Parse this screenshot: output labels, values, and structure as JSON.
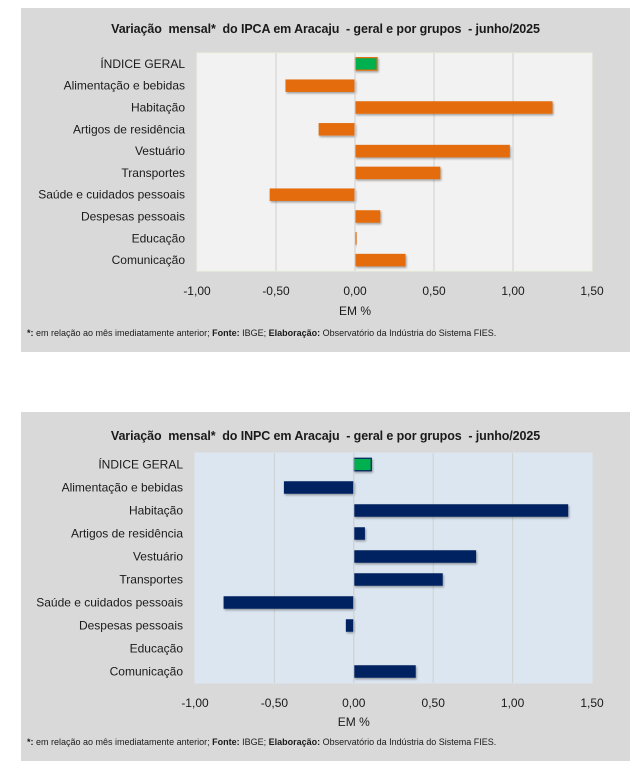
{
  "chart_data": [
    {
      "id": "ipca",
      "type": "bar",
      "orientation": "horizontal",
      "title": "Variação  mensal*  do IPCA em Aracaju  - geral e por grupos  - junho/2025",
      "xlabel": "EM %",
      "ylabel": "",
      "xlim": [
        -1.0,
        1.5
      ],
      "xticks": [
        -1.0,
        -0.5,
        0.0,
        0.5,
        1.0,
        1.5
      ],
      "xtick_labels": [
        "-1,00",
        "-0,50",
        "0,00",
        "0,50",
        "1,00",
        "1,50"
      ],
      "grid": true,
      "plot_background": "#f2f2f2",
      "categories": [
        "ÍNDICE GERAL",
        "Alimentação e bebidas",
        "Habitação",
        "Artigos de residência",
        "Vestuário",
        "Transportes",
        "Saúde e cuidados pessoais",
        "Despesas pessoais",
        "Educação",
        "Comunicação"
      ],
      "values": [
        0.14,
        -0.44,
        1.25,
        -0.23,
        0.98,
        0.54,
        -0.54,
        0.16,
        0.01,
        0.32
      ],
      "colors": {
        "highlight": "#00b050",
        "highlight_border": "#e46c0a",
        "bars": "#e46c0a"
      },
      "highlight_index": 0,
      "footnote": {
        "star_label": "*:",
        "star_text": " em relação ao mês imediatamente  anterior; ",
        "source_label": "Fonte:",
        "source_text": " IBGE; ",
        "elab_label": "Elaboração:",
        "elab_text": " Observatório da Indústria do Sistema FIES."
      }
    },
    {
      "id": "inpc",
      "type": "bar",
      "orientation": "horizontal",
      "title": "Variação  mensal*  do INPC em Aracaju  - geral e por grupos  - junho/2025",
      "xlabel": "EM %",
      "ylabel": "",
      "xlim": [
        -1.0,
        1.5
      ],
      "xticks": [
        -1.0,
        -0.5,
        0.0,
        0.5,
        1.0,
        1.5
      ],
      "xtick_labels": [
        "-1,00",
        "-0,50",
        "0,00",
        "0,50",
        "1,00",
        "1,50"
      ],
      "grid": true,
      "plot_background": "#dce6f1",
      "categories": [
        "ÍNDICE GERAL",
        "Alimentação e bebidas",
        "Habitação",
        "Artigos de residência",
        "Vestuário",
        "Transportes",
        "Saúde e cuidados pessoais",
        "Despesas pessoais",
        "Educação",
        "Comunicação"
      ],
      "values": [
        0.11,
        -0.44,
        1.35,
        0.07,
        0.77,
        0.56,
        -0.82,
        -0.05,
        0.0,
        0.39
      ],
      "colors": {
        "highlight": "#00b050",
        "highlight_border": "#002060",
        "bars": "#002060"
      },
      "highlight_index": 0,
      "footnote": {
        "star_label": "*:",
        "star_text": " em relação ao mês imediatamente  anterior; ",
        "source_label": "Fonte:",
        "source_text": " IBGE; ",
        "elab_label": "Elaboração:",
        "elab_text": " Observatório da Indústria do Sistema FIES."
      }
    }
  ]
}
